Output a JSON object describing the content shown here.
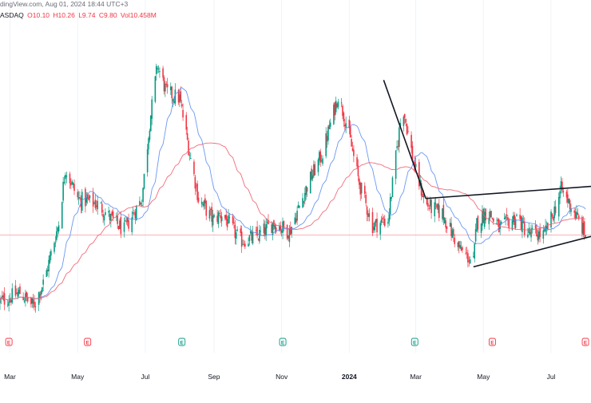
{
  "header": {
    "source_line": "dingView.com, Aug 01, 2024 18:44 UTC+3",
    "symbol_line": "ASDAQ",
    "o": "O10.10",
    "h": "H10.26",
    "l": "L9.74",
    "c": "C9.80",
    "vol": "Vol10.458M"
  },
  "chart_data": {
    "type": "candlestick",
    "x_tick_labels": [
      "Mar",
      "May",
      "Jul",
      "Sep",
      "Nov",
      "2024",
      "Mar",
      "May",
      "Jul"
    ],
    "x_tick_dates": [
      "2023-03-01",
      "2023-05-01",
      "2023-07-01",
      "2023-09-01",
      "2023-11-01",
      "2024-01-01",
      "2024-03-01",
      "2024-05-01",
      "2024-07-01"
    ],
    "x_range": [
      "2023-02-20",
      "2024-08-06"
    ],
    "earnings_markers": [
      {
        "date": "2023-02-28",
        "label": "E",
        "color": "#f23645"
      },
      {
        "date": "2023-05-10",
        "label": "E",
        "color": "#f23645"
      },
      {
        "date": "2023-08-03",
        "label": "E",
        "color": "#089981"
      },
      {
        "date": "2023-11-02",
        "label": "E",
        "color": "#089981"
      },
      {
        "date": "2024-02-29",
        "label": "E",
        "color": "#089981"
      },
      {
        "date": "2024-05-09",
        "label": "E",
        "color": "#f23645"
      },
      {
        "date": "2024-08-01",
        "label": "E",
        "color": "#f23645"
      }
    ],
    "y_range": [
      6.5,
      16.8
    ],
    "last_price": 9.8,
    "anchors": [
      [
        "2023-02-20",
        7.6
      ],
      [
        "2023-03-10",
        7.9
      ],
      [
        "2023-03-22",
        7.45
      ],
      [
        "2023-04-01",
        8.3
      ],
      [
        "2023-04-14",
        10.2
      ],
      [
        "2023-04-20",
        12.0
      ],
      [
        "2023-05-01",
        11.0
      ],
      [
        "2023-05-20",
        10.8
      ],
      [
        "2023-06-01",
        10.3
      ],
      [
        "2023-06-12",
        9.95
      ],
      [
        "2023-06-28",
        11.0
      ],
      [
        "2023-07-05",
        13.5
      ],
      [
        "2023-07-12",
        15.4
      ],
      [
        "2023-07-20",
        14.5
      ],
      [
        "2023-08-01",
        14.3
      ],
      [
        "2023-08-10",
        12.5
      ],
      [
        "2023-08-18",
        11.0
      ],
      [
        "2023-08-31",
        10.3
      ],
      [
        "2023-09-08",
        10.5
      ],
      [
        "2023-09-25",
        9.6
      ],
      [
        "2023-10-10",
        9.75
      ],
      [
        "2023-10-25",
        10.2
      ],
      [
        "2023-11-08",
        9.9
      ],
      [
        "2023-11-25",
        11.5
      ],
      [
        "2023-12-08",
        12.5
      ],
      [
        "2023-12-22",
        14.4
      ],
      [
        "2023-12-30",
        13.4
      ],
      [
        "2024-01-10",
        11.5
      ],
      [
        "2024-01-22",
        10.1
      ],
      [
        "2024-02-05",
        10.3
      ],
      [
        "2024-02-18",
        14.1
      ],
      [
        "2024-02-29",
        12.0
      ],
      [
        "2024-03-10",
        10.8
      ],
      [
        "2024-03-25",
        10.5
      ],
      [
        "2024-04-10",
        9.3
      ],
      [
        "2024-04-22",
        8.9
      ],
      [
        "2024-04-25",
        10.2
      ],
      [
        "2024-05-05",
        10.6
      ],
      [
        "2024-05-15",
        10.0
      ],
      [
        "2024-05-31",
        10.4
      ],
      [
        "2024-06-10",
        9.85
      ],
      [
        "2024-06-25",
        9.8
      ],
      [
        "2024-07-03",
        10.5
      ],
      [
        "2024-07-10",
        11.3
      ],
      [
        "2024-07-20",
        10.7
      ],
      [
        "2024-08-01",
        9.8
      ]
    ],
    "indicators": [
      {
        "name": "",
        "type": "sma",
        "period": 20,
        "color": "#5b8def"
      },
      {
        "name": "",
        "type": "sma",
        "period": 50,
        "color": "#f25c6e"
      }
    ],
    "horizontal_line": {
      "price": 9.8,
      "color": "#f23645"
    },
    "trendlines": [
      {
        "from": [
          "2024-02-01",
          14.9
        ],
        "to": [
          "2024-03-10",
          11.0
        ]
      },
      {
        "from": [
          "2024-03-10",
          11.0
        ],
        "to": [
          "2024-08-06",
          11.4
        ]
      },
      {
        "from": [
          "2024-04-22",
          8.75
        ],
        "to": [
          "2024-08-06",
          9.75
        ]
      }
    ],
    "colors": {
      "up": "#089981",
      "down": "#f23645",
      "grid": "#f0f3fa",
      "text": "#131722"
    }
  }
}
